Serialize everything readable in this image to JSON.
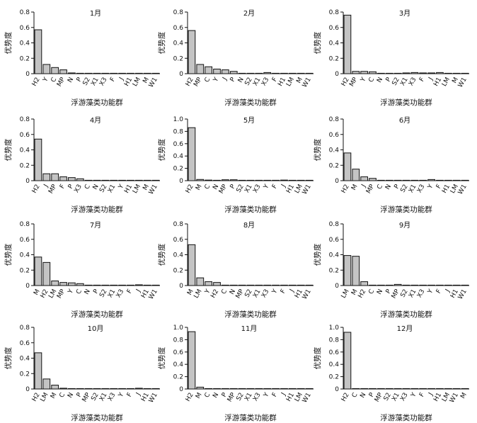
{
  "chart_data": [
    {
      "type": "bar",
      "title": "1月",
      "ylabel": "优势度",
      "xlabel": "浮游藻类功能群",
      "ylim": [
        0,
        0.8
      ],
      "yticks": [
        "0",
        "0.2",
        "0.4",
        "0.6",
        "0.8"
      ],
      "categories": [
        "H2",
        "Y",
        "C",
        "MP",
        "N",
        "P",
        "S2",
        "X1",
        "X3",
        "F",
        "J",
        "H1",
        "LM",
        "M",
        "W1"
      ],
      "values": [
        0.57,
        0.12,
        0.08,
        0.05,
        0.01,
        0.005,
        0.005,
        0.005,
        0.005,
        0.003,
        0.005,
        0.003,
        0.003,
        0.005,
        0.003
      ]
    },
    {
      "type": "bar",
      "title": "2月",
      "ylabel": "优势度",
      "xlabel": "浮游藻类功能群",
      "ylim": [
        0,
        0.8
      ],
      "yticks": [
        "0",
        "0.2",
        "0.4",
        "0.6",
        "0.8"
      ],
      "categories": [
        "H2",
        "MP",
        "C",
        "Y",
        "J",
        "P",
        "N",
        "S2",
        "X1",
        "X3",
        "F",
        "H1",
        "LM",
        "M",
        "W1"
      ],
      "values": [
        0.56,
        0.12,
        0.09,
        0.06,
        0.05,
        0.03,
        0.003,
        0.003,
        0.003,
        0.015,
        0.003,
        0.003,
        0.003,
        0.003,
        0.003
      ]
    },
    {
      "type": "bar",
      "title": "3月",
      "ylabel": "优势度",
      "xlabel": "浮游藻类功能群",
      "ylim": [
        0,
        0.8
      ],
      "yticks": [
        "0",
        "0.2",
        "0.4",
        "0.6",
        "0.8"
      ],
      "categories": [
        "H2",
        "MP",
        "Y",
        "C",
        "N",
        "P",
        "S2",
        "X1",
        "X3",
        "F",
        "J",
        "H1",
        "LM",
        "M",
        "W1"
      ],
      "values": [
        0.76,
        0.03,
        0.03,
        0.025,
        0.005,
        0.005,
        0.005,
        0.01,
        0.015,
        0.01,
        0.01,
        0.015,
        0.003,
        0.003,
        0.003
      ]
    },
    {
      "type": "bar",
      "title": "4月",
      "ylabel": "优势度",
      "xlabel": "浮游藻类功能群",
      "ylim": [
        0,
        0.8
      ],
      "yticks": [
        "0",
        "0.2",
        "0.4",
        "0.6",
        "0.8"
      ],
      "categories": [
        "H2",
        "J",
        "MP",
        "F",
        "P",
        "X3",
        "C",
        "N",
        "S2",
        "X1",
        "Y",
        "H1",
        "LM",
        "M",
        "W1"
      ],
      "values": [
        0.54,
        0.09,
        0.09,
        0.05,
        0.04,
        0.025,
        0.005,
        0.005,
        0.003,
        0.003,
        0.003,
        0.003,
        0.003,
        0.003,
        0.003
      ]
    },
    {
      "type": "bar",
      "title": "5月",
      "ylabel": "优势度",
      "xlabel": "浮游藻类功能群",
      "ylim": [
        0,
        1.0
      ],
      "yticks": [
        "0",
        "0.2",
        "0.4",
        "0.6",
        "0.8",
        "1.0"
      ],
      "categories": [
        "H2",
        "M",
        "C",
        "N",
        "MP",
        "P",
        "S2",
        "X1",
        "X3",
        "Y",
        "F",
        "J",
        "H1",
        "LM",
        "W1"
      ],
      "values": [
        0.86,
        0.02,
        0.01,
        0.005,
        0.015,
        0.015,
        0.003,
        0.005,
        0.003,
        0.005,
        0.005,
        0.01,
        0.003,
        0.003,
        0.003
      ]
    },
    {
      "type": "bar",
      "title": "6月",
      "ylabel": "优势度",
      "xlabel": "浮游藻类功能群",
      "ylim": [
        0,
        0.8
      ],
      "yticks": [
        "0",
        "0.2",
        "0.4",
        "0.6",
        "0.8"
      ],
      "categories": [
        "H2",
        "M",
        "J",
        "MP",
        "C",
        "N",
        "P",
        "S2",
        "X1",
        "X3",
        "Y",
        "F",
        "H1",
        "LM",
        "W1"
      ],
      "values": [
        0.36,
        0.15,
        0.05,
        0.03,
        0.005,
        0.005,
        0.003,
        0.003,
        0.003,
        0.005,
        0.015,
        0.003,
        0.003,
        0.003,
        0.003
      ]
    },
    {
      "type": "bar",
      "title": "7月",
      "ylabel": "优势度",
      "xlabel": "浮游藻类功能群",
      "ylim": [
        0,
        0.8
      ],
      "yticks": [
        "0",
        "0.2",
        "0.4",
        "0.6",
        "0.8"
      ],
      "categories": [
        "M",
        "H2",
        "LM",
        "MP",
        "Y",
        "C",
        "N",
        "P",
        "S2",
        "X1",
        "X3",
        "F",
        "J",
        "H1",
        "W1"
      ],
      "values": [
        0.37,
        0.3,
        0.06,
        0.04,
        0.035,
        0.025,
        0.003,
        0.003,
        0.003,
        0.003,
        0.005,
        0.003,
        0.01,
        0.005,
        0.003
      ]
    },
    {
      "type": "bar",
      "title": "8月",
      "ylabel": "优势度",
      "xlabel": "浮游藻类功能群",
      "ylim": [
        0,
        0.8
      ],
      "yticks": [
        "0",
        "0.2",
        "0.4",
        "0.6",
        "0.8"
      ],
      "categories": [
        "M",
        "LM",
        "Y",
        "H2",
        "C",
        "N",
        "MP",
        "S2",
        "X1",
        "X3",
        "Y",
        "F",
        "J",
        "H1",
        "W1"
      ],
      "values": [
        0.53,
        0.1,
        0.05,
        0.04,
        0.005,
        0.003,
        0.003,
        0.005,
        0.003,
        0.003,
        0.003,
        0.003,
        0.003,
        0.005,
        0.003
      ]
    },
    {
      "type": "bar",
      "title": "9月",
      "ylabel": "优势度",
      "xlabel": "浮游藻类功能群",
      "ylim": [
        0,
        0.8
      ],
      "yticks": [
        "0",
        "0.2",
        "0.4",
        "0.6",
        "0.8"
      ],
      "categories": [
        "LM",
        "M",
        "H2",
        "C",
        "N",
        "P",
        "MP",
        "S2",
        "X1",
        "X3",
        "Y",
        "F",
        "J",
        "H1",
        "W1"
      ],
      "values": [
        0.39,
        0.38,
        0.05,
        0.005,
        0.003,
        0.003,
        0.015,
        0.003,
        0.003,
        0.003,
        0.003,
        0.003,
        0.005,
        0.003,
        0.003
      ]
    },
    {
      "type": "bar",
      "title": "10月",
      "ylabel": "优势度",
      "xlabel": "浮游藻类功能群",
      "ylim": [
        0,
        0.8
      ],
      "yticks": [
        "0",
        "0.2",
        "0.4",
        "0.6",
        "0.8"
      ],
      "categories": [
        "H2",
        "LM",
        "M",
        "C",
        "N",
        "P",
        "MP",
        "S2",
        "X1",
        "X3",
        "Y",
        "F",
        "J",
        "H1",
        "W1"
      ],
      "values": [
        0.47,
        0.13,
        0.05,
        0.01,
        0.003,
        0.003,
        0.005,
        0.003,
        0.003,
        0.003,
        0.005,
        0.003,
        0.01,
        0.005,
        0.003
      ]
    },
    {
      "type": "bar",
      "title": "11月",
      "ylabel": "优势度",
      "xlabel": "浮游藻类功能群",
      "ylim": [
        0,
        1.0
      ],
      "yticks": [
        "0",
        "0.2",
        "0.4",
        "0.6",
        "0.8",
        "1.0"
      ],
      "categories": [
        "H2",
        "M",
        "C",
        "N",
        "P",
        "MP",
        "S2",
        "X1",
        "X3",
        "Y",
        "F",
        "J",
        "H1",
        "LM",
        "W1"
      ],
      "values": [
        0.93,
        0.03,
        0.005,
        0.003,
        0.003,
        0.003,
        0.003,
        0.003,
        0.003,
        0.003,
        0.003,
        0.003,
        0.003,
        0.003,
        0.005
      ]
    },
    {
      "type": "bar",
      "title": "12月",
      "ylabel": "优势度",
      "xlabel": "浮游藻类功能群",
      "ylim": [
        0,
        1.0
      ],
      "yticks": [
        "0",
        "0.2",
        "0.4",
        "0.6",
        "0.8",
        "1.0"
      ],
      "categories": [
        "H2",
        "C",
        "N",
        "P",
        "MP",
        "S2",
        "X1",
        "X3",
        "Y",
        "F",
        "J",
        "H1",
        "LM",
        "W1",
        "M"
      ],
      "values": [
        0.92,
        0.005,
        0.003,
        0.003,
        0.005,
        0.003,
        0.003,
        0.005,
        0.003,
        0.003,
        0.003,
        0.003,
        0.003,
        0.003,
        0.003
      ]
    }
  ]
}
